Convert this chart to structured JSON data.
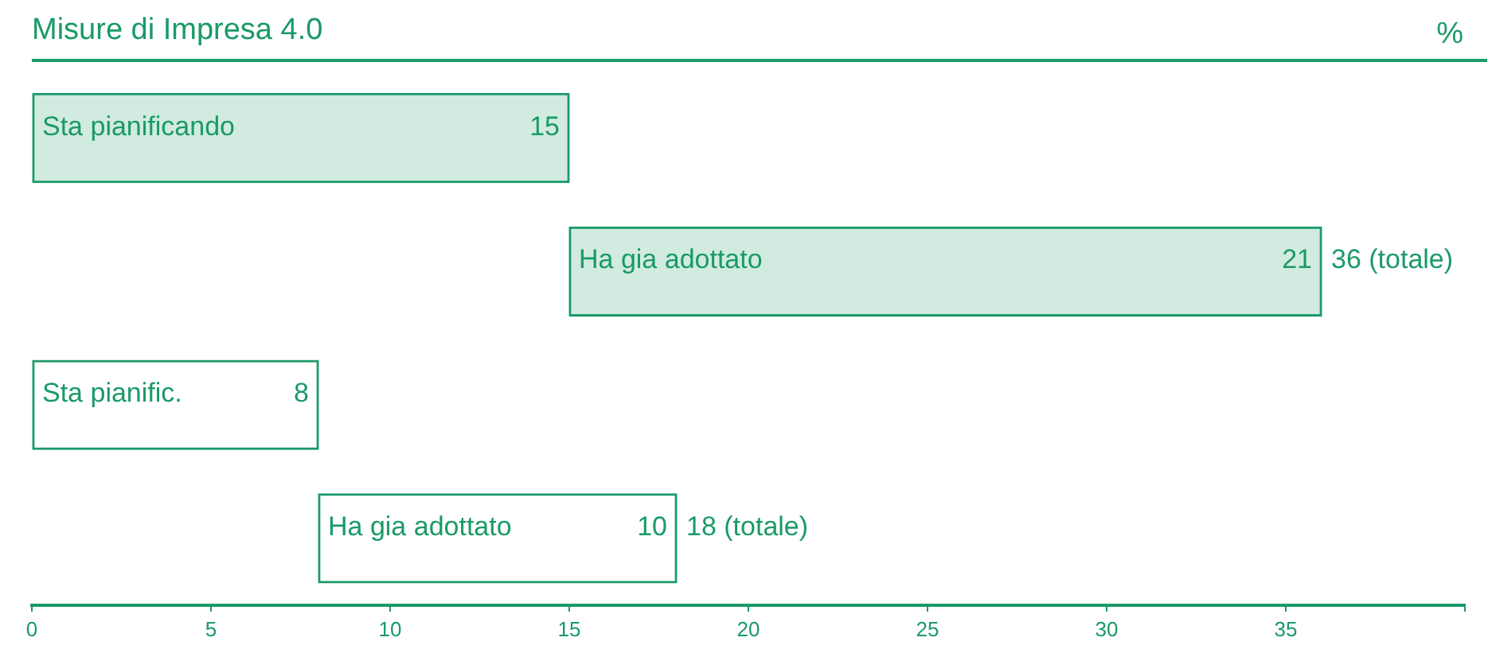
{
  "chart_data": {
    "type": "bar",
    "orientation": "horizontal",
    "title": "Misure di Impresa 4.0",
    "xlabel": "%",
    "categories": [
      "Sta pianificando",
      "Ha gia adottato",
      "Sta pianific.",
      "Ha gia adottato"
    ],
    "base": [
      0,
      15,
      0,
      8
    ],
    "values": [
      15,
      21,
      8,
      10
    ],
    "colors": [
      "#d1ebe1",
      "#d1ebe1",
      "#ffffff",
      "#ffffff"
    ],
    "data_labels": true,
    "annotations": [
      "36 (totale)",
      "18 (totale)"
    ],
    "xlim": [
      0,
      40
    ],
    "xticks": [
      0,
      5,
      10,
      15,
      20,
      25,
      30,
      35,
      {
        "value": 40,
        "label": null
      }
    ],
    "grid": false,
    "legend": false
  }
}
